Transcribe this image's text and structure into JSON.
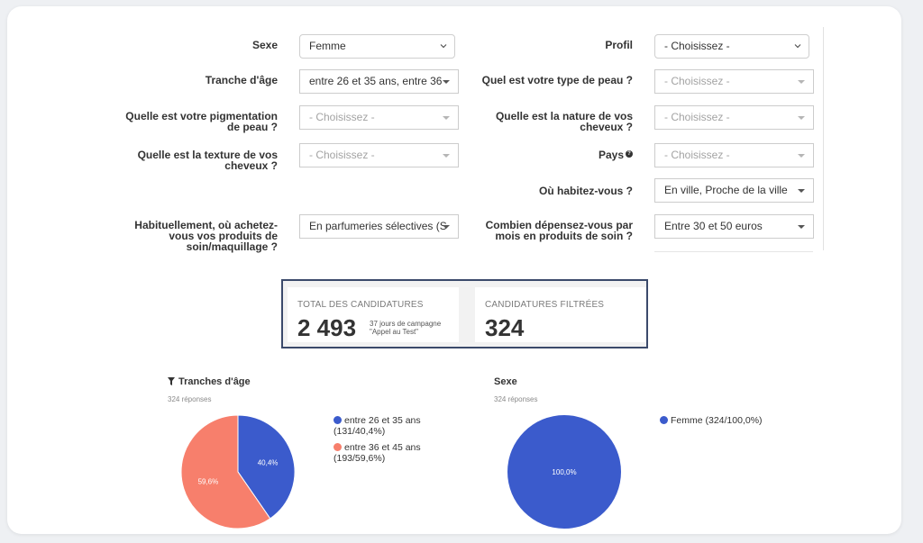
{
  "filters": {
    "sexe": {
      "label": "Sexe",
      "value": "Femme"
    },
    "profil": {
      "label": "Profil",
      "value": "- Choisissez -"
    },
    "tranche_age": {
      "label": "Tranche d'âge",
      "value": "entre 26 et 35 ans, entre 36"
    },
    "type_peau": {
      "label": "Quel est votre type de peau ?",
      "value": "- Choisissez -"
    },
    "pigmentation": {
      "label_line1": "Quelle est votre pigmentation",
      "label_line2": "de peau ?",
      "value": "- Choisissez -"
    },
    "nature_cheveux": {
      "label_line1": "Quelle est la nature de vos",
      "label_line2": "cheveux ?",
      "value": "- Choisissez -"
    },
    "texture_cheveux": {
      "label_line1": "Quelle est la texture de vos",
      "label_line2": "cheveux ?",
      "value": "- Choisissez -"
    },
    "pays": {
      "label": "Pays",
      "help": "?",
      "value": "- Choisissez -"
    },
    "habitation": {
      "label": "Où habitez-vous ?",
      "value": "En ville, Proche de la ville"
    },
    "achat": {
      "label_line1": "Habituellement, où achetez-",
      "label_line2": "vous vos produits de",
      "label_line3": "soin/maquillage ?",
      "value": "En parfumeries sélectives (S"
    },
    "depense": {
      "label_line1": "Combien dépensez-vous par",
      "label_line2": "mois en produits de soin ?",
      "value": "Entre 30 et 50 euros"
    }
  },
  "stats": {
    "total": {
      "title": "TOTAL DES CANDIDATURES",
      "value": "2 493",
      "note_line1": "37 jours de campagne",
      "note_line2": "\"Appel au Test\""
    },
    "filtered": {
      "title": "CANDIDATURES FILTRÉES",
      "value": "324"
    }
  },
  "icons": {
    "filter": "filter-icon",
    "help": "help-circle-icon",
    "caret": "caret-down-icon",
    "chevron": "chevron-down-icon"
  },
  "colors": {
    "blue": "#3b5bcc",
    "salmon": "#f77f6c",
    "stats_border": "#3b4a6b"
  },
  "chart_data": [
    {
      "type": "pie",
      "title": "Tranches d'âge",
      "subtitle": "324 réponses",
      "slices": [
        {
          "name": "entre 26 et 35 ans",
          "legend_line2": "(131/40,4%)",
          "count": 131,
          "value": 40.4,
          "label": "40,4%",
          "color": "#3b5bcc"
        },
        {
          "name": "entre 36 et 45 ans",
          "legend_line2": "(193/59,6%)",
          "count": 193,
          "value": 59.6,
          "label": "59,6%",
          "color": "#f77f6c"
        }
      ]
    },
    {
      "type": "pie",
      "title": "Sexe",
      "subtitle": "324 réponses",
      "slices": [
        {
          "name": "Femme (324/100,0%)",
          "count": 324,
          "value": 100.0,
          "label": "100,0%",
          "color": "#3b5bcc"
        }
      ]
    }
  ]
}
